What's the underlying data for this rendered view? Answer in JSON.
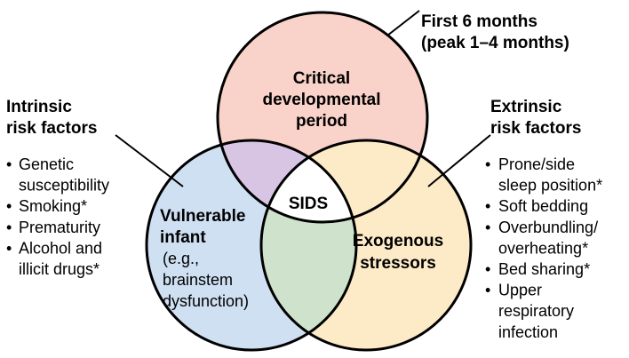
{
  "circles": {
    "top": {
      "title_lines": [
        "Critical",
        "developmental",
        "period"
      ],
      "fill": "#f9d2c9",
      "callout_lines": [
        "First 6 months",
        "(peak 1–4 months)"
      ]
    },
    "left": {
      "title_lines": [
        "Vulnerable",
        "infant"
      ],
      "detail_lines": [
        "(e.g.,",
        "brainstem",
        "dysfunction)"
      ],
      "fill": "#cfe0f3"
    },
    "right": {
      "title_lines": [
        "Exogenous",
        "stressors"
      ],
      "fill": "#fdebc8"
    }
  },
  "overlaps": {
    "top_left_fill": "#d7c5e3",
    "left_right_fill": "#cfe3cc",
    "center_fill": "#ffffff"
  },
  "center_label": "SIDS",
  "intrinsic": {
    "heading_lines": [
      "Intrinsic",
      "risk factors"
    ],
    "items": [
      [
        "Genetic",
        "susceptibility"
      ],
      [
        "Smoking*"
      ],
      [
        "Prematurity"
      ],
      [
        "Alcohol and",
        "illicit drugs*"
      ]
    ]
  },
  "extrinsic": {
    "heading_lines": [
      "Extrinsic",
      "risk factors"
    ],
    "items": [
      [
        "Prone/side",
        "sleep position*"
      ],
      [
        "Soft bedding"
      ],
      [
        "Overbundling/",
        "overheating*"
      ],
      [
        "Bed sharing*"
      ],
      [
        "Upper",
        "respiratory",
        "infection"
      ]
    ]
  }
}
